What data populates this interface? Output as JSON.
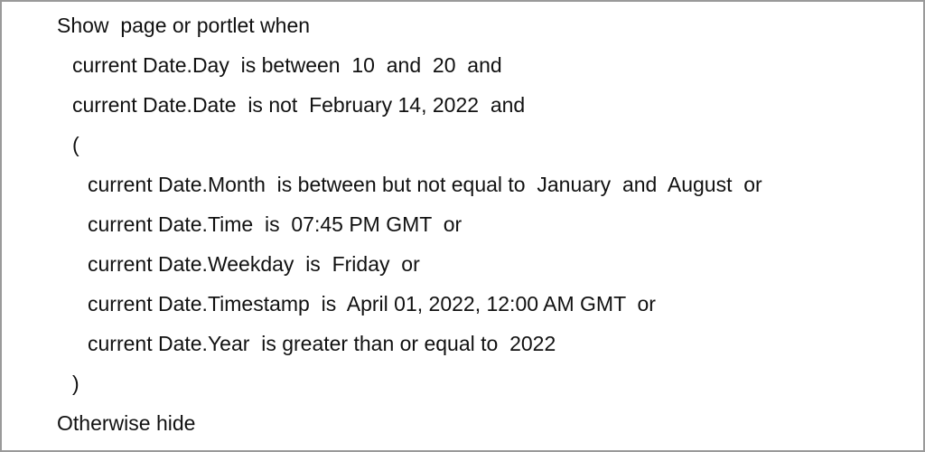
{
  "rule": {
    "header": [
      "Show",
      "page or portlet when"
    ],
    "conditions_outer": [
      [
        "current Date.Day",
        "is between",
        "10",
        "and",
        "20",
        "and"
      ],
      [
        "current Date.Date",
        "is not",
        "February 14, 2022",
        "and"
      ]
    ],
    "open_paren": "(",
    "conditions_inner": [
      [
        "current Date.Month",
        "is between but not equal to",
        "January",
        "and",
        "August",
        "or"
      ],
      [
        "current Date.Time",
        "is",
        "07:45 PM GMT",
        "or"
      ],
      [
        "current Date.Weekday",
        "is",
        "Friday",
        "or"
      ],
      [
        "current Date.Timestamp",
        "is",
        "April 01, 2022, 12:00 AM GMT",
        "or"
      ],
      [
        "current Date.Year",
        "is greater than or equal to",
        "2022"
      ]
    ],
    "close_paren": ")",
    "footer": [
      "Otherwise",
      "hide"
    ]
  }
}
